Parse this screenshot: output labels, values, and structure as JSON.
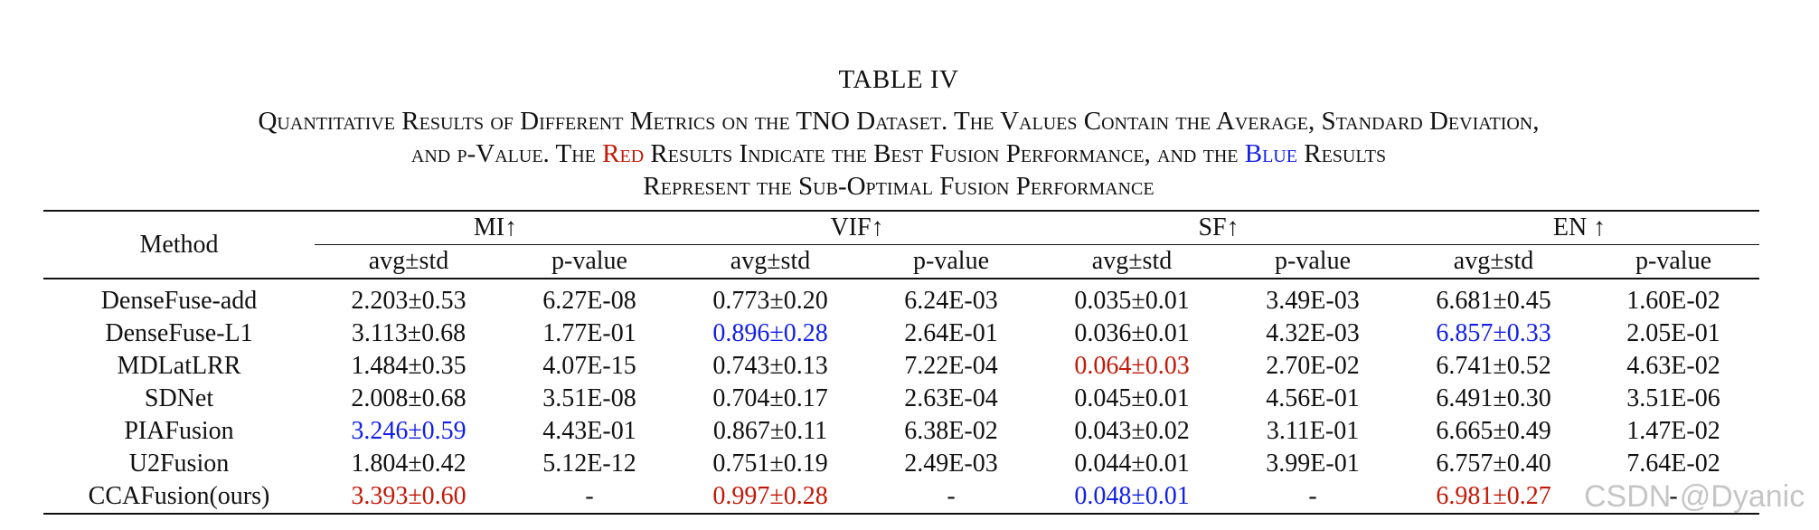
{
  "caption": {
    "label": "TABLE IV",
    "line1": "Quantitative Results of Different Metrics on the TNO Dataset. The Values Contain the Average, Standard Deviation,",
    "line2_prefix": "and p-Value. The ",
    "line2_red": "Red",
    "line2_middle": " Results Indicate the Best Fusion Performance, and the ",
    "line2_blue": "Blue",
    "line2_suffix": " Results",
    "line3": "Represent the Sub-Optimal Fusion Performance"
  },
  "table": {
    "method_header": "Method",
    "metrics": [
      "MI↑",
      "VIF↑",
      "SF↑",
      "EN ↑"
    ],
    "sub_headers": [
      "avg±std",
      "p-value"
    ],
    "rows": [
      {
        "method": "DenseFuse-add",
        "bold": false,
        "cells": [
          {
            "v": "2.203±0.53",
            "s": ""
          },
          {
            "v": "6.27E-08",
            "s": ""
          },
          {
            "v": "0.773±0.20",
            "s": ""
          },
          {
            "v": "6.24E-03",
            "s": ""
          },
          {
            "v": "0.035±0.01",
            "s": ""
          },
          {
            "v": "3.49E-03",
            "s": ""
          },
          {
            "v": "6.681±0.45",
            "s": ""
          },
          {
            "v": "1.60E-02",
            "s": ""
          }
        ]
      },
      {
        "method": "DenseFuse-L1",
        "bold": false,
        "cells": [
          {
            "v": "3.113±0.68",
            "s": ""
          },
          {
            "v": "1.77E-01",
            "s": ""
          },
          {
            "v": "0.896±0.28",
            "s": "second"
          },
          {
            "v": "2.64E-01",
            "s": ""
          },
          {
            "v": "0.036±0.01",
            "s": ""
          },
          {
            "v": "4.32E-03",
            "s": ""
          },
          {
            "v": "6.857±0.33",
            "s": "second"
          },
          {
            "v": "2.05E-01",
            "s": ""
          }
        ]
      },
      {
        "method": "MDLatLRR",
        "bold": false,
        "cells": [
          {
            "v": "1.484±0.35",
            "s": ""
          },
          {
            "v": "4.07E-15",
            "s": ""
          },
          {
            "v": "0.743±0.13",
            "s": ""
          },
          {
            "v": "7.22E-04",
            "s": ""
          },
          {
            "v": "0.064±0.03",
            "s": "best"
          },
          {
            "v": "2.70E-02",
            "s": ""
          },
          {
            "v": "6.741±0.52",
            "s": ""
          },
          {
            "v": "4.63E-02",
            "s": ""
          }
        ]
      },
      {
        "method": "SDNet",
        "bold": false,
        "cells": [
          {
            "v": "2.008±0.68",
            "s": ""
          },
          {
            "v": "3.51E-08",
            "s": ""
          },
          {
            "v": "0.704±0.17",
            "s": ""
          },
          {
            "v": "2.63E-04",
            "s": ""
          },
          {
            "v": "0.045±0.01",
            "s": ""
          },
          {
            "v": "4.56E-01",
            "s": ""
          },
          {
            "v": "6.491±0.30",
            "s": ""
          },
          {
            "v": "3.51E-06",
            "s": ""
          }
        ]
      },
      {
        "method": "PIAFusion",
        "bold": false,
        "cells": [
          {
            "v": "3.246±0.59",
            "s": "second"
          },
          {
            "v": "4.43E-01",
            "s": ""
          },
          {
            "v": "0.867±0.11",
            "s": ""
          },
          {
            "v": "6.38E-02",
            "s": ""
          },
          {
            "v": "0.043±0.02",
            "s": ""
          },
          {
            "v": "3.11E-01",
            "s": ""
          },
          {
            "v": "6.665±0.49",
            "s": ""
          },
          {
            "v": "1.47E-02",
            "s": ""
          }
        ]
      },
      {
        "method": "U2Fusion",
        "bold": false,
        "cells": [
          {
            "v": "1.804±0.42",
            "s": ""
          },
          {
            "v": "5.12E-12",
            "s": ""
          },
          {
            "v": "0.751±0.19",
            "s": ""
          },
          {
            "v": "2.49E-03",
            "s": ""
          },
          {
            "v": "0.044±0.01",
            "s": ""
          },
          {
            "v": "3.99E-01",
            "s": ""
          },
          {
            "v": "6.757±0.40",
            "s": ""
          },
          {
            "v": "7.64E-02",
            "s": ""
          }
        ]
      },
      {
        "method": "CCAFusion(ours)",
        "bold": true,
        "cells": [
          {
            "v": "3.393±0.60",
            "s": "best"
          },
          {
            "v": "-",
            "s": ""
          },
          {
            "v": "0.997±0.28",
            "s": "best"
          },
          {
            "v": "-",
            "s": ""
          },
          {
            "v": "0.048±0.01",
            "s": "second"
          },
          {
            "v": "-",
            "s": ""
          },
          {
            "v": "6.981±0.27",
            "s": "best"
          },
          {
            "v": "-",
            "s": ""
          }
        ]
      }
    ]
  },
  "colors": {
    "best": "#c21807",
    "second": "#1320e6"
  },
  "watermark": "CSDN @Dyanic"
}
